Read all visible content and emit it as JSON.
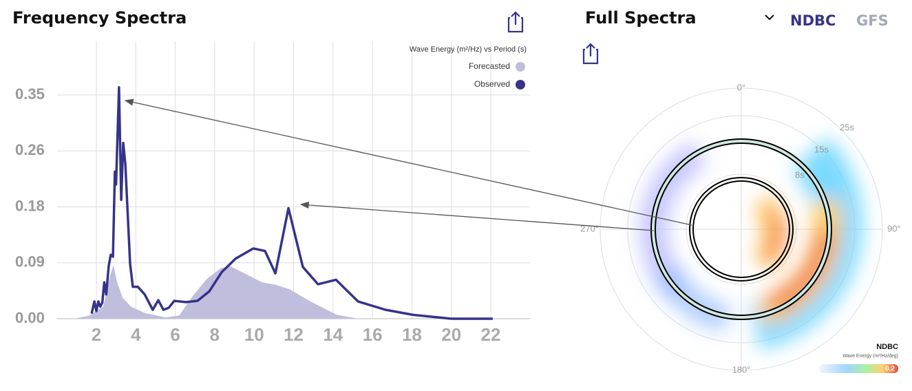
{
  "chart_data": {
    "type": "line-area",
    "title": "Frequency Spectra",
    "legend_title": "Wave Energy (m²/Hz) vs Period (s)",
    "xlim": [
      0,
      24
    ],
    "xticks": [
      2,
      4,
      6,
      8,
      10,
      12,
      14,
      16,
      18,
      20,
      22
    ],
    "ylim": [
      0,
      0.434
    ],
    "yticks": [
      {
        "value": 0,
        "label": "0.00"
      },
      {
        "value": 0.0875,
        "label": "0.09"
      },
      {
        "value": 0.175,
        "label": "0.18"
      },
      {
        "value": 0.2625,
        "label": "0.26"
      },
      0.35
    ],
    "grid": true,
    "legend": "upper right",
    "series": [
      {
        "name": "Forecasted",
        "color": "#bfbedc",
        "fill": true,
        "x": [
          0.89,
          1.65,
          2.35,
          2.7,
          2.87,
          3.05,
          3.33,
          3.75,
          4.45,
          5.5,
          6.2,
          6.9,
          7.6,
          8.3,
          8.8,
          9.7,
          10.4,
          11.1,
          11.8,
          12.8,
          14.2,
          15.3
        ],
        "values": [
          0,
          0.005,
          0.019,
          0.068,
          0.084,
          0.057,
          0.033,
          0.019,
          0.009,
          0.002,
          0.005,
          0.036,
          0.062,
          0.079,
          0.082,
          0.068,
          0.057,
          0.053,
          0.046,
          0.028,
          0.006,
          0
        ]
      },
      {
        "name": "Observed",
        "color": "#35338a",
        "fill": false,
        "x": [
          1.76,
          1.9,
          2.0,
          2.1,
          2.2,
          2.3,
          2.4,
          2.5,
          2.63,
          2.73,
          2.84,
          2.94,
          3.0,
          3.15,
          3.26,
          3.36,
          3.47,
          3.71,
          3.85,
          4.1,
          4.45,
          4.86,
          5.14,
          5.4,
          5.67,
          5.95,
          6.54,
          7.13,
          7.73,
          8.36,
          9.06,
          9.96,
          10.55,
          11.08,
          11.74,
          12.47,
          13.24,
          14.15,
          15.27,
          16.66,
          18.06,
          20.0,
          22.1
        ],
        "values": [
          0.008,
          0.027,
          0.012,
          0.027,
          0.019,
          0.025,
          0.057,
          0.038,
          0.083,
          0.1,
          0.097,
          0.23,
          0.21,
          0.362,
          0.186,
          0.275,
          0.242,
          0.086,
          0.05,
          0.05,
          0.038,
          0.014,
          0.029,
          0.014,
          0.017,
          0.028,
          0.026,
          0.028,
          0.043,
          0.073,
          0.094,
          0.11,
          0.106,
          0.071,
          0.173,
          0.081,
          0.054,
          0.061,
          0.027,
          0.014,
          0.006,
          0,
          0
        ]
      }
    ]
  },
  "polar_panel": {
    "title": "Full Spectra",
    "tabs": [
      "NDBC",
      "GFS"
    ],
    "direction_labels": [
      "0°",
      "90°",
      "180°",
      "270°"
    ],
    "period_labels": [
      "25s",
      "15s",
      "8s"
    ],
    "colorbar": {
      "title": "NDBC",
      "subtitle": "Wave Energy (m²/Hz/deg)",
      "max_label": "0.2"
    }
  }
}
